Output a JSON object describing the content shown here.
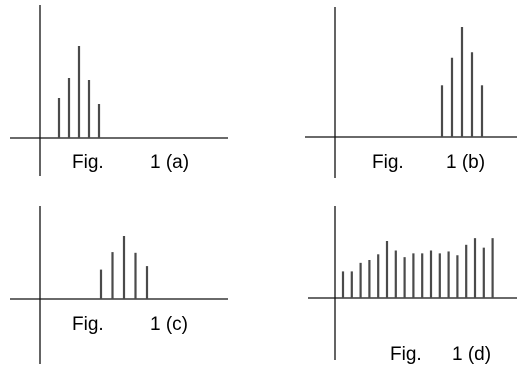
{
  "panels": [
    {
      "label_fig": "Fig.",
      "label_id": "1 (a)",
      "bars": [
        0.4,
        0.6,
        0.92,
        0.58,
        0.34
      ]
    },
    {
      "label_fig": "Fig.",
      "label_id": "1 (b)",
      "bars": [
        0.47,
        0.72,
        1.0,
        0.77,
        0.47
      ]
    },
    {
      "label_fig": "Fig.",
      "label_id": "1 (c)",
      "bars": [
        0.42,
        0.67,
        0.9,
        0.66,
        0.47
      ]
    },
    {
      "label_fig": "Fig.",
      "label_id": "1 (d)",
      "bars": [
        0.28,
        0.28,
        0.37,
        0.4,
        0.46,
        0.6,
        0.5,
        0.43,
        0.47,
        0.47,
        0.5,
        0.47,
        0.49,
        0.45,
        0.56,
        0.63,
        0.53,
        0.63
      ]
    }
  ]
}
